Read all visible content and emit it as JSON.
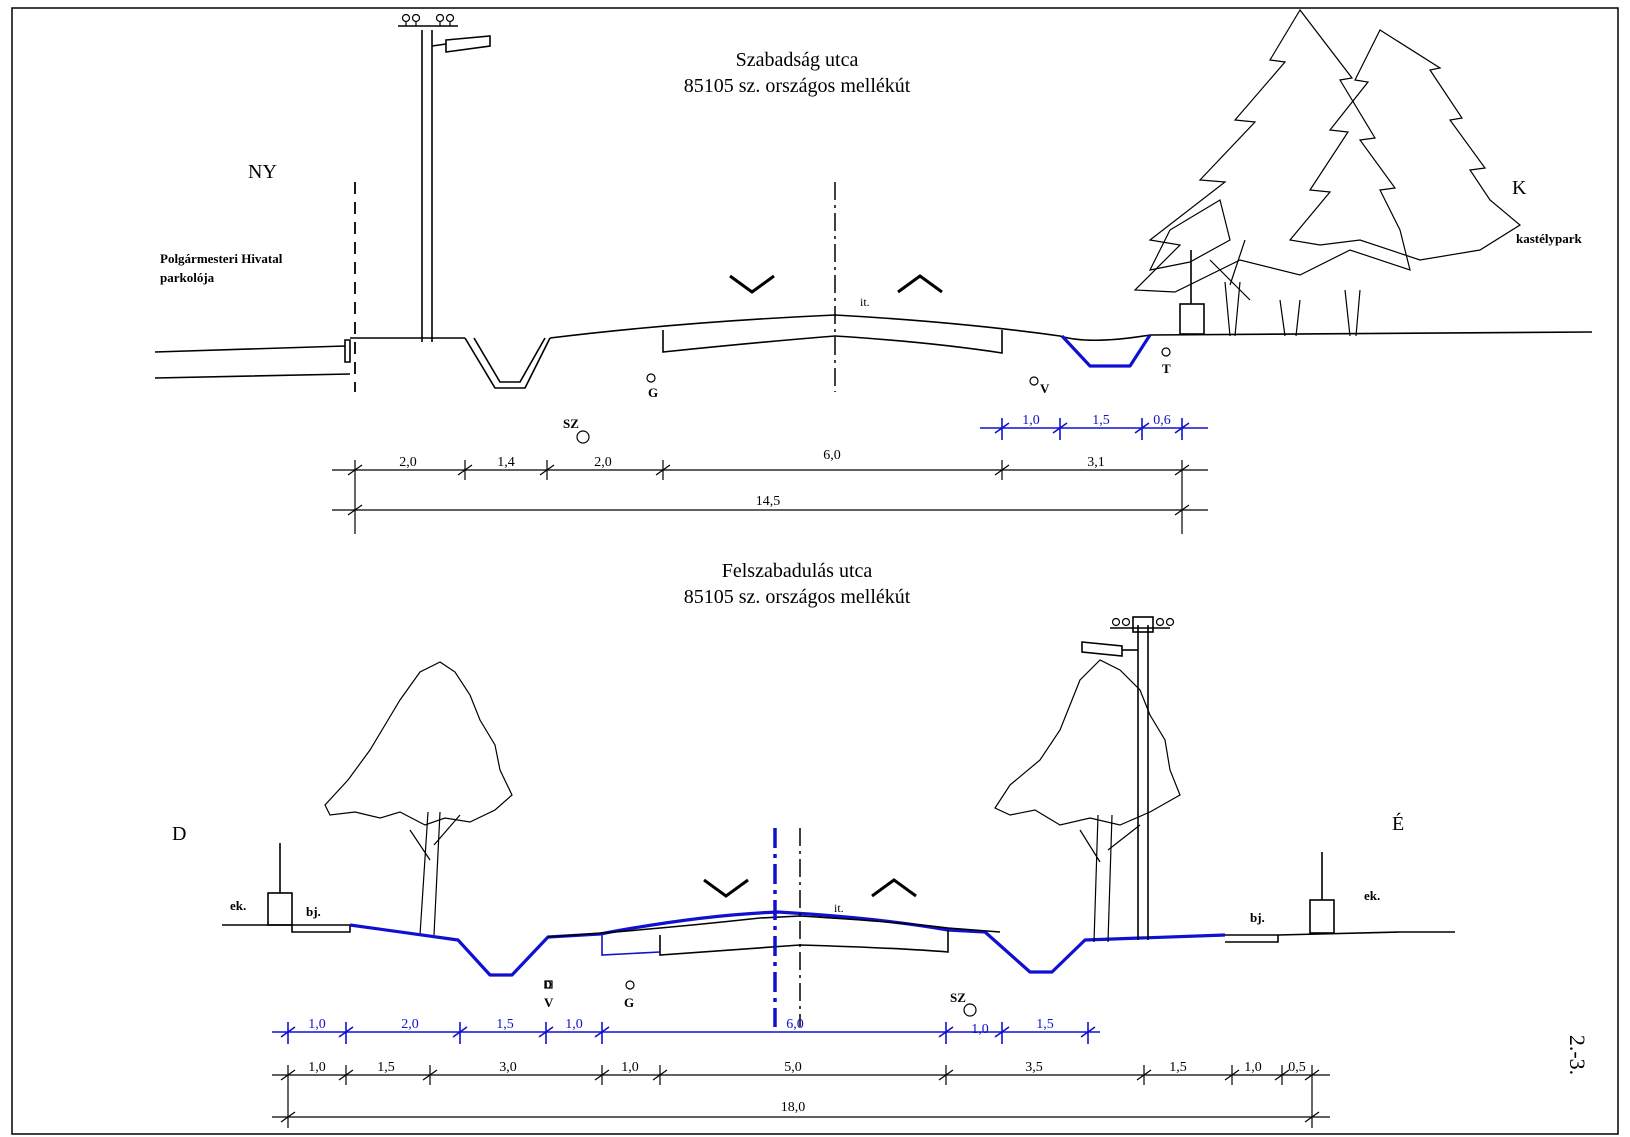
{
  "section1": {
    "title_line1": "Szabadság utca",
    "title_line2": "85105 sz. országos mellékút",
    "left_dir": "NY",
    "right_dir": "K",
    "left_note_line1": "Polgármesteri Hivatal",
    "left_note_line2": "parkolója",
    "right_note": "kastélypark",
    "label_it": "it.",
    "util_g": "G",
    "util_v": "V",
    "util_t": "T",
    "util_sz": "SZ",
    "dims_blue": [
      "1,0",
      "1,5",
      "0,6"
    ],
    "dims_row1": [
      "2,0",
      "1,4",
      "2,0",
      "6,0",
      "3,1"
    ],
    "dims_total": "14,5"
  },
  "section2": {
    "title_line1": "Felszabadulás utca",
    "title_line2": "85105 sz. országos mellékút",
    "left_dir": "D",
    "right_dir": "É",
    "label_ek_left": "ek.",
    "label_bj_left": "bj.",
    "label_ek_right": "ek.",
    "label_bj_right": "bj.",
    "label_it": "it.",
    "util_d": "D",
    "util_v": "V",
    "util_g": "G",
    "util_sz": "SZ",
    "dims_blue": [
      "1,0",
      "2,0",
      "1,5",
      "1,0",
      "6,0",
      "1,0",
      "1,5"
    ],
    "dims_row1": [
      "1,0",
      "1,5",
      "3,0",
      "1,0",
      "5,0",
      "3,5",
      "1,5",
      "1,0",
      "0,5"
    ],
    "dims_total": "18,0"
  },
  "sheet_number": "2.-3.",
  "colors": {
    "ink": "#000000",
    "proposed": "#1010d0"
  }
}
